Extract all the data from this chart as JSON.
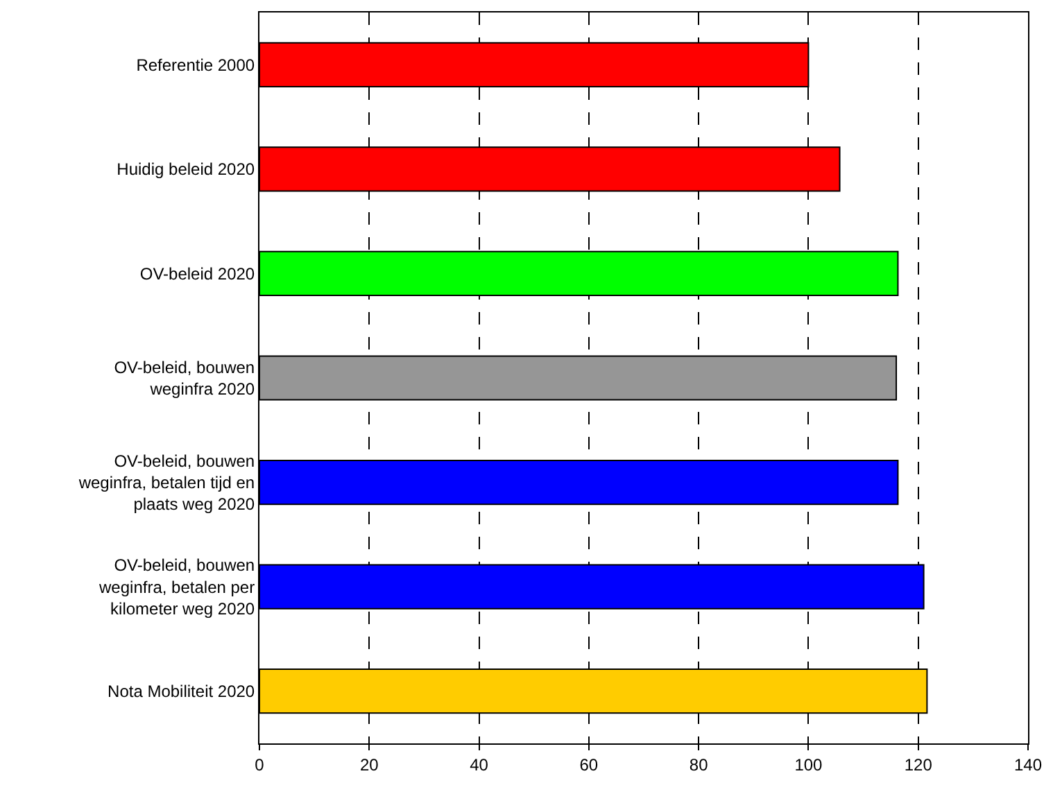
{
  "chart_data": {
    "type": "bar",
    "orientation": "horizontal",
    "categories": [
      "Referentie 2000",
      "Huidig beleid 2020",
      "OV-beleid 2020",
      "OV-beleid, bouwen\nweginfra 2020",
      "OV-beleid, bouwen\nweginfra, betalen tijd en\nplaats weg 2020",
      "OV-beleid, bouwen\nweginfra, betalen per\nkilometer weg 2020",
      "Nota Mobiliteit 2020"
    ],
    "values": [
      100,
      105.7,
      116.3,
      116.0,
      116.3,
      121.0,
      121.6
    ],
    "colors": [
      "#ff0000",
      "#ff0000",
      "#00ff00",
      "#969696",
      "#0000ff",
      "#0000ff",
      "#ffcc00"
    ],
    "xlim": [
      0,
      140
    ],
    "xticks": [
      0,
      20,
      40,
      60,
      80,
      100,
      120,
      140
    ],
    "grid": "x",
    "legend": false
  }
}
